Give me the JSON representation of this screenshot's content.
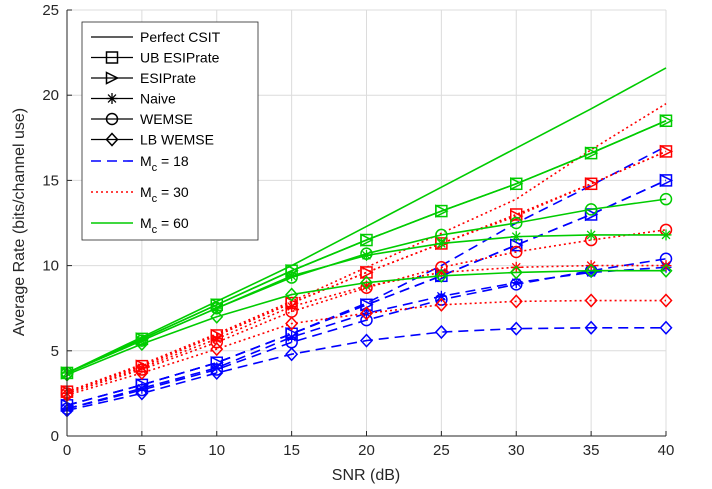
{
  "chart_data": {
    "type": "line",
    "title": "",
    "xlabel": "SNR (dB)",
    "ylabel": "Average Rate (bits/channel use)",
    "xlim": [
      0,
      40
    ],
    "ylim": [
      0,
      25
    ],
    "xticks": [
      0,
      5,
      10,
      15,
      20,
      25,
      30,
      35,
      40
    ],
    "yticks": [
      0,
      5,
      10,
      15,
      20,
      25
    ],
    "grid": true,
    "legend_placement": "top-left",
    "x": [
      0,
      5,
      10,
      15,
      20,
      25,
      30,
      35,
      40
    ],
    "legend": {
      "markers": [
        {
          "label": "Perfect CSIT",
          "marker": "none"
        },
        {
          "label": "UB ESIPrate",
          "marker": "square"
        },
        {
          "label": "ESIPrate",
          "marker": "triangle-right"
        },
        {
          "label": "Naive",
          "marker": "star"
        },
        {
          "label": "WEMSE",
          "marker": "circle"
        },
        {
          "label": "LB WEMSE",
          "marker": "diamond"
        }
      ],
      "groups": [
        {
          "label_main": "M",
          "label_sub": "c",
          "label_rest": " = 18",
          "color": "#0000ff",
          "dash": "dashed"
        },
        {
          "label_main": "M",
          "label_sub": "c",
          "label_rest": " = 30",
          "color": "#ff0000",
          "dash": "dotted"
        },
        {
          "label_main": "M",
          "label_sub": "c",
          "label_rest": " = 60",
          "color": "#00cc00",
          "dash": "solid"
        }
      ]
    },
    "series": [
      {
        "group": 0,
        "marker": "none",
        "values": [
          1.8,
          3.0,
          4.3,
          6.0,
          7.8,
          10.0,
          12.5,
          14.7,
          17.0
        ]
      },
      {
        "group": 0,
        "marker": "square",
        "values": [
          1.8,
          3.0,
          4.3,
          6.0,
          7.7,
          9.4,
          11.2,
          13.0,
          15.0
        ]
      },
      {
        "group": 0,
        "marker": "triangle-right",
        "values": [
          1.8,
          3.0,
          4.3,
          6.0,
          7.7,
          9.4,
          11.2,
          13.0,
          15.0
        ]
      },
      {
        "group": 0,
        "marker": "star",
        "values": [
          1.6,
          2.8,
          4.0,
          5.8,
          7.2,
          8.2,
          9.0,
          9.6,
          9.9
        ]
      },
      {
        "group": 0,
        "marker": "circle",
        "values": [
          1.6,
          2.7,
          3.9,
          5.5,
          6.8,
          8.0,
          8.9,
          9.7,
          10.4
        ]
      },
      {
        "group": 0,
        "marker": "diamond",
        "values": [
          1.5,
          2.5,
          3.7,
          4.8,
          5.6,
          6.1,
          6.3,
          6.35,
          6.35
        ]
      },
      {
        "group": 1,
        "marker": "none",
        "values": [
          2.6,
          4.2,
          6.0,
          7.9,
          9.9,
          11.9,
          13.9,
          16.8,
          19.5
        ]
      },
      {
        "group": 1,
        "marker": "square",
        "values": [
          2.6,
          4.1,
          5.9,
          7.8,
          9.6,
          11.3,
          13.0,
          14.8,
          16.7
        ]
      },
      {
        "group": 1,
        "marker": "triangle-right",
        "values": [
          2.6,
          4.1,
          5.9,
          7.8,
          9.6,
          11.3,
          12.9,
          14.8,
          16.7
        ]
      },
      {
        "group": 1,
        "marker": "star",
        "values": [
          2.5,
          4.0,
          5.7,
          7.6,
          8.8,
          9.6,
          9.9,
          10.0,
          10.0
        ]
      },
      {
        "group": 1,
        "marker": "circle",
        "values": [
          2.5,
          3.9,
          5.5,
          7.3,
          8.7,
          9.9,
          10.8,
          11.5,
          12.1
        ]
      },
      {
        "group": 1,
        "marker": "diamond",
        "values": [
          2.4,
          3.7,
          5.1,
          6.6,
          7.2,
          7.7,
          7.9,
          7.95,
          7.95
        ]
      },
      {
        "group": 2,
        "marker": "none",
        "values": [
          3.7,
          5.8,
          7.9,
          10.0,
          12.3,
          14.6,
          16.9,
          19.2,
          21.6
        ]
      },
      {
        "group": 2,
        "marker": "square",
        "values": [
          3.7,
          5.7,
          7.7,
          9.7,
          11.5,
          13.2,
          14.8,
          16.6,
          18.5
        ]
      },
      {
        "group": 2,
        "marker": "triangle-right",
        "values": [
          3.7,
          5.7,
          7.7,
          9.7,
          11.5,
          13.2,
          14.8,
          16.6,
          18.5
        ]
      },
      {
        "group": 2,
        "marker": "star",
        "values": [
          3.7,
          5.6,
          7.5,
          9.4,
          10.6,
          11.3,
          11.7,
          11.8,
          11.8
        ]
      },
      {
        "group": 2,
        "marker": "circle",
        "values": [
          3.7,
          5.6,
          7.5,
          9.3,
          10.7,
          11.8,
          12.5,
          13.3,
          13.9
        ]
      },
      {
        "group": 2,
        "marker": "diamond",
        "values": [
          3.6,
          5.4,
          7.0,
          8.3,
          9.0,
          9.4,
          9.6,
          9.7,
          9.7
        ]
      }
    ]
  }
}
